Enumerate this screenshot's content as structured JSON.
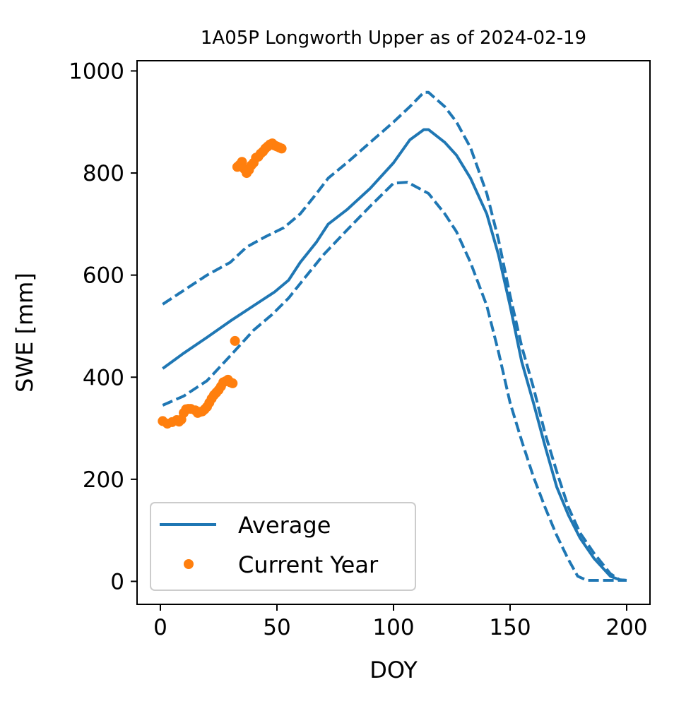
{
  "chart_data": {
    "type": "line",
    "title": "1A05P Longworth Upper as of 2024-02-19",
    "xlabel": "DOY",
    "ylabel": "SWE [mm]",
    "xlim": [
      -10,
      210
    ],
    "ylim": [
      -45,
      1020
    ],
    "xticks": [
      0,
      50,
      100,
      150,
      200
    ],
    "yticks": [
      0,
      200,
      400,
      600,
      800,
      1000
    ],
    "grid": false,
    "legend_position": "lower-left",
    "series": [
      {
        "name": "Average",
        "style": "solid",
        "color": "#1f77b4",
        "points": [
          [
            1,
            417
          ],
          [
            10,
            447
          ],
          [
            20,
            478
          ],
          [
            30,
            510
          ],
          [
            40,
            540
          ],
          [
            49,
            567
          ],
          [
            55,
            590
          ],
          [
            60,
            625
          ],
          [
            67,
            665
          ],
          [
            72,
            700
          ],
          [
            80,
            728
          ],
          [
            90,
            770
          ],
          [
            100,
            820
          ],
          [
            107,
            865
          ],
          [
            113,
            885
          ],
          [
            115,
            885
          ],
          [
            122,
            860
          ],
          [
            127,
            835
          ],
          [
            133,
            790
          ],
          [
            140,
            720
          ],
          [
            145,
            640
          ],
          [
            150,
            540
          ],
          [
            155,
            430
          ],
          [
            160,
            350
          ],
          [
            165,
            265
          ],
          [
            170,
            185
          ],
          [
            175,
            130
          ],
          [
            180,
            85
          ],
          [
            186,
            45
          ],
          [
            193,
            10
          ],
          [
            197,
            3
          ],
          [
            200,
            2
          ]
        ]
      },
      {
        "name": "",
        "style": "dashed",
        "color": "#1f77b4",
        "points": [
          [
            1,
            543
          ],
          [
            10,
            570
          ],
          [
            20,
            600
          ],
          [
            30,
            625
          ],
          [
            37,
            655
          ],
          [
            45,
            675
          ],
          [
            53,
            693
          ],
          [
            60,
            720
          ],
          [
            67,
            760
          ],
          [
            72,
            790
          ],
          [
            80,
            820
          ],
          [
            90,
            860
          ],
          [
            100,
            900
          ],
          [
            107,
            930
          ],
          [
            113,
            958
          ],
          [
            115,
            958
          ],
          [
            122,
            930
          ],
          [
            127,
            900
          ],
          [
            133,
            850
          ],
          [
            140,
            760
          ],
          [
            145,
            670
          ],
          [
            150,
            560
          ],
          [
            155,
            460
          ],
          [
            160,
            380
          ],
          [
            165,
            290
          ],
          [
            170,
            215
          ],
          [
            175,
            145
          ],
          [
            180,
            95
          ],
          [
            186,
            55
          ],
          [
            193,
            15
          ],
          [
            197,
            3
          ],
          [
            200,
            2
          ]
        ]
      },
      {
        "name": "",
        "style": "dashed",
        "color": "#1f77b4",
        "points": [
          [
            1,
            345
          ],
          [
            10,
            363
          ],
          [
            20,
            393
          ],
          [
            30,
            442
          ],
          [
            40,
            492
          ],
          [
            48,
            523
          ],
          [
            55,
            555
          ],
          [
            62,
            595
          ],
          [
            70,
            640
          ],
          [
            80,
            688
          ],
          [
            90,
            735
          ],
          [
            100,
            780
          ],
          [
            106,
            782
          ],
          [
            115,
            760
          ],
          [
            122,
            720
          ],
          [
            127,
            685
          ],
          [
            133,
            625
          ],
          [
            140,
            540
          ],
          [
            145,
            450
          ],
          [
            150,
            350
          ],
          [
            155,
            275
          ],
          [
            160,
            205
          ],
          [
            165,
            145
          ],
          [
            170,
            90
          ],
          [
            175,
            43
          ],
          [
            179,
            10
          ],
          [
            183,
            2
          ],
          [
            190,
            2
          ],
          [
            200,
            2
          ]
        ]
      }
    ],
    "scatter": {
      "name": "Current Year",
      "color": "#ff7f0e",
      "points": [
        [
          1,
          314
        ],
        [
          3,
          309
        ],
        [
          5,
          312
        ],
        [
          7,
          316
        ],
        [
          8,
          313
        ],
        [
          9,
          317
        ],
        [
          10,
          330
        ],
        [
          11,
          337
        ],
        [
          12,
          338
        ],
        [
          13,
          338
        ],
        [
          15,
          335
        ],
        [
          16,
          330
        ],
        [
          17,
          332
        ],
        [
          18,
          333
        ],
        [
          19,
          337
        ],
        [
          20,
          342
        ],
        [
          21,
          350
        ],
        [
          22,
          358
        ],
        [
          23,
          365
        ],
        [
          24,
          370
        ],
        [
          25,
          375
        ],
        [
          26,
          382
        ],
        [
          27,
          390
        ],
        [
          28,
          392
        ],
        [
          29,
          395
        ],
        [
          30,
          390
        ],
        [
          31,
          388
        ],
        [
          32,
          471
        ],
        [
          33,
          812
        ],
        [
          34,
          816
        ],
        [
          35,
          822
        ],
        [
          36,
          808
        ],
        [
          37,
          800
        ],
        [
          38,
          806
        ],
        [
          39,
          815
        ],
        [
          40,
          820
        ],
        [
          41,
          830
        ],
        [
          42,
          832
        ],
        [
          43,
          838
        ],
        [
          44,
          842
        ],
        [
          45,
          848
        ],
        [
          46,
          852
        ],
        [
          47,
          856
        ],
        [
          48,
          858
        ],
        [
          49,
          854
        ],
        [
          50,
          852
        ],
        [
          51,
          850
        ],
        [
          52,
          848
        ]
      ]
    }
  }
}
